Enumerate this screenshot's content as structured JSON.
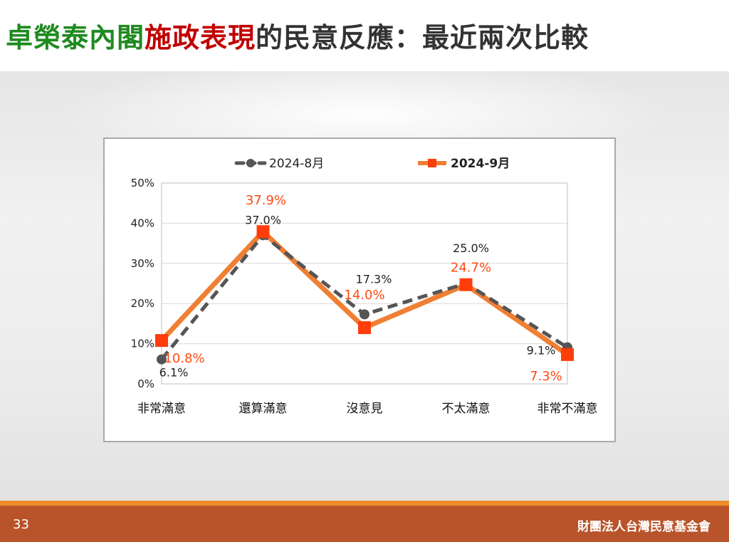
{
  "title": {
    "part1": "卓榮泰內閣",
    "part2": "施政表現",
    "part3": "的民意反應：最近兩次比較",
    "colors": {
      "part1": "#1f8a1f",
      "part2": "#c00000",
      "part3": "#333333"
    }
  },
  "chart_data": {
    "type": "line",
    "categories": [
      "非常滿意",
      "還算滿意",
      "沒意見",
      "不太滿意",
      "非常不滿意"
    ],
    "series": [
      {
        "name": "2024-8月",
        "values": [
          6.1,
          37.0,
          17.3,
          25.0,
          9.1
        ],
        "color": "#555555",
        "labels": [
          "6.1%",
          "37.0%",
          "17.3%",
          "25.0%",
          "9.1%"
        ]
      },
      {
        "name": "2024-9月",
        "values": [
          10.8,
          37.9,
          14.0,
          24.7,
          7.3
        ],
        "color": "#f07f34",
        "labels": [
          "10.8%",
          "37.9%",
          "14.0%",
          "24.7%",
          "7.3%"
        ]
      }
    ],
    "ylim": [
      0,
      50
    ],
    "yticks": [
      "0%",
      "10%",
      "20%",
      "30%",
      "40%",
      "50%"
    ],
    "grid": true,
    "legend": "top"
  },
  "footer": {
    "page": "33",
    "org": "財團法人台灣民意基金會"
  }
}
